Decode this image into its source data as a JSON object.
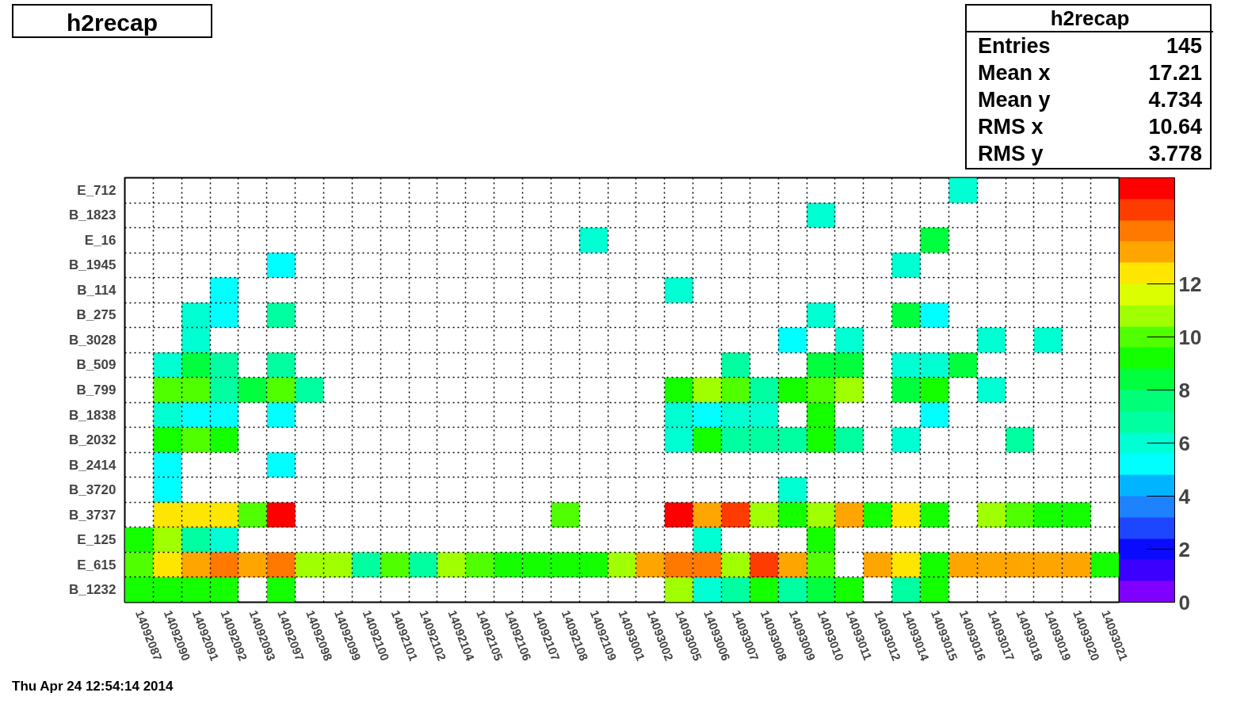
{
  "chart_data": {
    "type": "heatmap",
    "title": "h2recap",
    "categories": [
      "14092087",
      "14092090",
      "14092091",
      "14092092",
      "14092093",
      "14092097",
      "14092098",
      "14092099",
      "14092100",
      "14092101",
      "14092102",
      "14092104",
      "14092105",
      "14092106",
      "14092107",
      "14092108",
      "14092109",
      "14093001",
      "14093002",
      "14093005",
      "14093006",
      "14093007",
      "14093008",
      "14093009",
      "14093010",
      "14093011",
      "14093012",
      "14093014",
      "14093015",
      "14093016",
      "14093017",
      "14093018",
      "14093019",
      "14093020",
      "14093021"
    ],
    "y_categories": [
      "E_712",
      "B_1823",
      "E_16",
      "B_1945",
      "B_114",
      "B_275",
      "B_3028",
      "B_509",
      "B_799",
      "B_1838",
      "B_2032",
      "B_2414",
      "B_3720",
      "B_3737",
      "E_125",
      "E_615",
      "B_1232"
    ],
    "cells": [
      [
        null,
        null,
        null,
        null,
        null,
        null,
        null,
        null,
        null,
        null,
        null,
        null,
        null,
        null,
        null,
        null,
        null,
        null,
        null,
        null,
        null,
        null,
        null,
        null,
        null,
        null,
        null,
        null,
        null,
        6,
        null,
        null,
        null,
        null,
        null
      ],
      [
        null,
        null,
        null,
        null,
        null,
        null,
        null,
        null,
        null,
        null,
        null,
        null,
        null,
        null,
        null,
        null,
        null,
        null,
        null,
        null,
        null,
        null,
        null,
        null,
        6,
        null,
        null,
        null,
        null,
        null,
        null,
        null,
        null,
        null,
        null
      ],
      [
        null,
        null,
        null,
        null,
        null,
        null,
        null,
        null,
        null,
        null,
        null,
        null,
        null,
        null,
        null,
        null,
        6,
        null,
        null,
        null,
        null,
        null,
        null,
        null,
        null,
        null,
        null,
        null,
        8,
        null,
        null,
        null,
        null,
        null,
        null
      ],
      [
        null,
        null,
        null,
        null,
        null,
        5,
        null,
        null,
        null,
        null,
        null,
        null,
        null,
        null,
        null,
        null,
        null,
        null,
        null,
        null,
        null,
        null,
        null,
        null,
        null,
        null,
        null,
        6,
        null,
        null,
        null,
        null,
        null,
        null,
        null
      ],
      [
        null,
        null,
        null,
        5,
        null,
        null,
        null,
        null,
        null,
        null,
        null,
        null,
        null,
        null,
        null,
        null,
        null,
        null,
        null,
        6,
        null,
        null,
        null,
        null,
        null,
        null,
        null,
        null,
        null,
        null,
        null,
        null,
        null,
        null,
        null
      ],
      [
        null,
        null,
        6,
        5,
        null,
        7,
        null,
        null,
        null,
        null,
        null,
        null,
        null,
        null,
        null,
        null,
        null,
        null,
        null,
        null,
        null,
        null,
        null,
        null,
        6,
        null,
        null,
        8,
        5,
        null,
        null,
        null,
        null,
        null,
        null
      ],
      [
        null,
        null,
        6,
        null,
        null,
        null,
        null,
        null,
        null,
        null,
        null,
        null,
        null,
        null,
        null,
        null,
        null,
        null,
        null,
        null,
        null,
        null,
        null,
        5,
        null,
        6,
        null,
        null,
        null,
        null,
        6,
        null,
        6,
        null,
        null
      ],
      [
        null,
        6,
        8,
        7,
        null,
        7,
        null,
        null,
        null,
        null,
        null,
        null,
        null,
        null,
        null,
        null,
        null,
        null,
        null,
        null,
        null,
        7,
        null,
        null,
        8,
        8,
        null,
        6,
        6,
        8,
        null,
        null,
        null,
        null,
        null
      ],
      [
        null,
        10,
        10,
        7,
        8,
        10,
        7,
        null,
        null,
        null,
        null,
        null,
        null,
        null,
        null,
        null,
        null,
        null,
        null,
        9,
        11,
        10,
        7,
        9,
        10,
        11,
        null,
        8,
        9,
        null,
        6,
        null,
        null,
        null,
        null
      ],
      [
        null,
        6,
        5,
        5,
        null,
        5,
        null,
        null,
        null,
        null,
        null,
        null,
        null,
        null,
        null,
        null,
        null,
        null,
        null,
        6,
        5,
        6,
        6,
        null,
        9,
        null,
        null,
        null,
        5,
        null,
        null,
        null,
        null,
        null,
        null
      ],
      [
        null,
        9,
        10,
        9,
        null,
        null,
        null,
        null,
        null,
        null,
        null,
        null,
        null,
        null,
        null,
        null,
        null,
        null,
        null,
        6,
        9,
        7,
        7,
        7,
        9,
        7,
        null,
        6,
        null,
        null,
        null,
        7,
        null,
        null,
        null
      ],
      [
        null,
        5,
        null,
        null,
        null,
        5,
        null,
        null,
        null,
        null,
        null,
        null,
        null,
        null,
        null,
        null,
        null,
        null,
        null,
        null,
        null,
        null,
        null,
        null,
        null,
        null,
        null,
        null,
        null,
        null,
        null,
        null,
        null,
        null,
        null
      ],
      [
        null,
        5,
        null,
        null,
        null,
        null,
        null,
        null,
        null,
        null,
        null,
        null,
        null,
        null,
        null,
        null,
        null,
        null,
        null,
        null,
        null,
        null,
        null,
        6,
        null,
        null,
        null,
        null,
        null,
        null,
        null,
        null,
        null,
        null,
        null
      ],
      [
        null,
        12,
        12,
        12,
        10,
        16,
        null,
        null,
        null,
        null,
        null,
        null,
        null,
        null,
        null,
        10,
        null,
        null,
        null,
        16,
        13,
        15,
        11,
        9,
        11,
        13,
        9,
        12,
        9,
        null,
        11,
        10,
        9,
        9,
        null
      ],
      [
        9,
        11,
        7,
        6,
        null,
        null,
        null,
        null,
        null,
        null,
        null,
        null,
        null,
        null,
        null,
        null,
        null,
        null,
        null,
        null,
        6,
        null,
        null,
        null,
        9,
        null,
        null,
        null,
        null,
        null,
        null,
        null,
        null,
        null,
        null
      ],
      [
        10,
        12,
        13,
        14,
        13,
        14,
        11,
        11,
        7,
        10,
        7,
        11,
        10,
        9,
        9,
        9,
        9,
        11,
        13,
        14,
        14,
        11,
        15,
        13,
        10,
        null,
        13,
        12,
        9,
        13,
        13,
        13,
        13,
        13,
        9
      ],
      [
        9,
        9,
        9,
        9,
        null,
        9,
        null,
        null,
        null,
        null,
        null,
        null,
        null,
        null,
        null,
        null,
        null,
        null,
        null,
        11,
        6,
        7,
        9,
        7,
        8,
        9,
        null,
        7,
        9,
        null,
        null,
        null,
        null,
        null,
        null
      ]
    ],
    "clim": [
      0,
      16
    ],
    "cticks": [
      0,
      2,
      4,
      6,
      8,
      10,
      12
    ],
    "grid": true,
    "annotations": [
      "Thu Apr 24 12:54:14 2014",
      "h2recap",
      "Entries 145",
      "Mean x 17.21",
      "Mean y 4.734",
      "RMS x 10.64",
      "RMS y 3.778"
    ]
  }
}
